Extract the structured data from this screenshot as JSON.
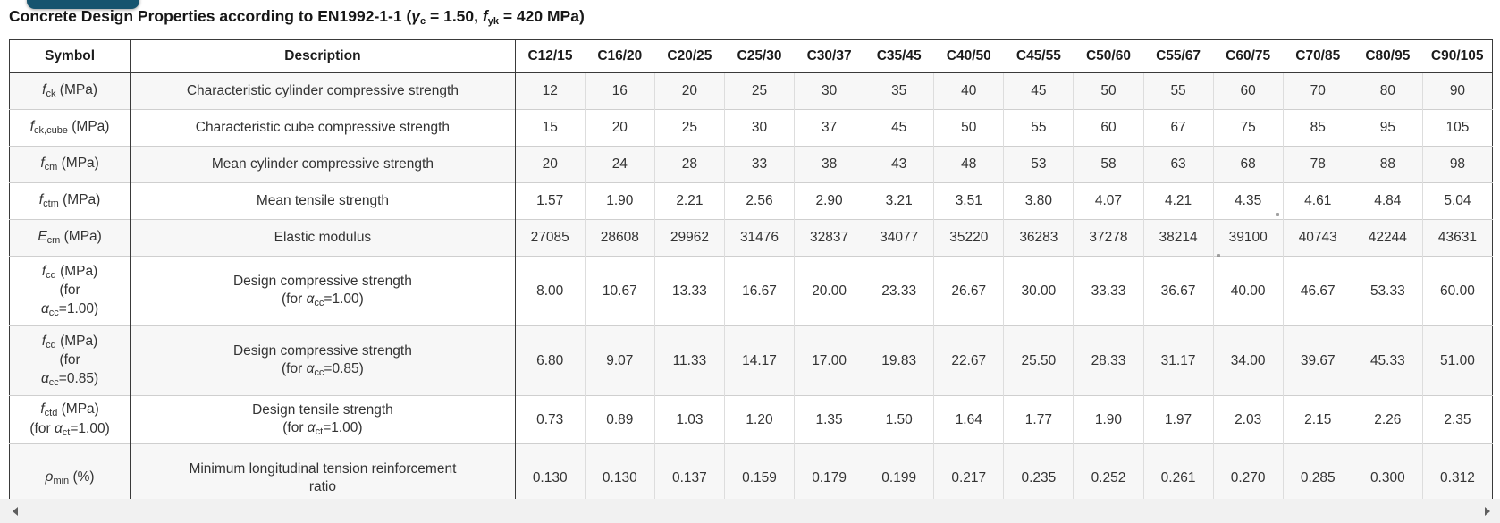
{
  "tab": {
    "color": "#16546f"
  },
  "title": {
    "segments": [
      [
        "Concrete Design Properties according to EN1992-1-1 (",
        ""
      ],
      [
        "γ",
        "i"
      ],
      [
        "c",
        "sub"
      ],
      [
        " = 1.50, ",
        ""
      ],
      [
        "f",
        "i"
      ],
      [
        "yk",
        "sub"
      ],
      [
        " = 420 MPa)",
        ""
      ]
    ]
  },
  "table": {
    "headers": {
      "symbol": "Symbol",
      "description": "Description"
    },
    "columns": [
      "C12/15",
      "C16/20",
      "C20/25",
      "C25/30",
      "C30/37",
      "C35/45",
      "C40/50",
      "C45/55",
      "C50/60",
      "C55/67",
      "C60/75",
      "C70/85",
      "C80/95",
      "C90/105"
    ],
    "rows": [
      {
        "id": "fck",
        "symbol": [
          [
            [
              "f",
              "i"
            ],
            [
              "ck",
              "sub"
            ],
            [
              " (MPa)",
              ""
            ]
          ]
        ],
        "description": [
          [
            [
              "Characteristic cylinder compressive strength",
              ""
            ]
          ]
        ],
        "values": [
          "12",
          "16",
          "20",
          "25",
          "30",
          "35",
          "40",
          "45",
          "50",
          "55",
          "60",
          "70",
          "80",
          "90"
        ]
      },
      {
        "id": "fckcube",
        "symbol": [
          [
            [
              "f",
              "i"
            ],
            [
              "ck,cube",
              "sub"
            ],
            [
              " (MPa)",
              ""
            ]
          ]
        ],
        "description": [
          [
            [
              "Characteristic cube compressive strength",
              ""
            ]
          ]
        ],
        "values": [
          "15",
          "20",
          "25",
          "30",
          "37",
          "45",
          "50",
          "55",
          "60",
          "67",
          "75",
          "85",
          "95",
          "105"
        ]
      },
      {
        "id": "fcm",
        "symbol": [
          [
            [
              "f",
              "i"
            ],
            [
              "cm",
              "sub"
            ],
            [
              " (MPa)",
              ""
            ]
          ]
        ],
        "description": [
          [
            [
              "Mean cylinder compressive strength",
              ""
            ]
          ]
        ],
        "values": [
          "20",
          "24",
          "28",
          "33",
          "38",
          "43",
          "48",
          "53",
          "58",
          "63",
          "68",
          "78",
          "88",
          "98"
        ]
      },
      {
        "id": "fctm",
        "symbol": [
          [
            [
              "f",
              "i"
            ],
            [
              "ctm",
              "sub"
            ],
            [
              " (MPa)",
              ""
            ]
          ]
        ],
        "description": [
          [
            [
              "Mean tensile strength",
              ""
            ]
          ]
        ],
        "values": [
          "1.57",
          "1.90",
          "2.21",
          "2.56",
          "2.90",
          "3.21",
          "3.51",
          "3.80",
          "4.07",
          "4.21",
          "4.35",
          "4.61",
          "4.84",
          "5.04"
        ]
      },
      {
        "id": "ecm",
        "symbol": [
          [
            [
              "E",
              "i"
            ],
            [
              "cm",
              "sub"
            ],
            [
              " (MPa)",
              ""
            ]
          ]
        ],
        "description": [
          [
            [
              "Elastic modulus",
              ""
            ]
          ]
        ],
        "values": [
          "27085",
          "28608",
          "29962",
          "31476",
          "32837",
          "34077",
          "35220",
          "36283",
          "37278",
          "38214",
          "39100",
          "40743",
          "42244",
          "43631"
        ]
      },
      {
        "id": "fcd100",
        "symbol": [
          [
            [
              "f",
              "i"
            ],
            [
              "cd",
              "sub"
            ],
            [
              " (MPa)",
              ""
            ]
          ],
          [
            [
              "(for",
              ""
            ]
          ],
          [
            [
              "α",
              "i"
            ],
            [
              "cc",
              "sub"
            ],
            [
              "=1.00)",
              ""
            ]
          ]
        ],
        "description": [
          [
            [
              "Design compressive strength",
              ""
            ]
          ],
          [
            [
              "(for ",
              ""
            ],
            [
              "α",
              "i"
            ],
            [
              "cc",
              "sub"
            ],
            [
              "=1.00)",
              ""
            ]
          ]
        ],
        "values": [
          "8.00",
          "10.67",
          "13.33",
          "16.67",
          "20.00",
          "23.33",
          "26.67",
          "30.00",
          "33.33",
          "36.67",
          "40.00",
          "46.67",
          "53.33",
          "60.00"
        ]
      },
      {
        "id": "fcd085",
        "symbol": [
          [
            [
              "f",
              "i"
            ],
            [
              "cd",
              "sub"
            ],
            [
              " (MPa)",
              ""
            ]
          ],
          [
            [
              "(for",
              ""
            ]
          ],
          [
            [
              "α",
              "i"
            ],
            [
              "cc",
              "sub"
            ],
            [
              "=0.85)",
              ""
            ]
          ]
        ],
        "description": [
          [
            [
              "Design compressive strength",
              ""
            ]
          ],
          [
            [
              "(for ",
              ""
            ],
            [
              "α",
              "i"
            ],
            [
              "cc",
              "sub"
            ],
            [
              "=0.85)",
              ""
            ]
          ]
        ],
        "values": [
          "6.80",
          "9.07",
          "11.33",
          "14.17",
          "17.00",
          "19.83",
          "22.67",
          "25.50",
          "28.33",
          "31.17",
          "34.00",
          "39.67",
          "45.33",
          "51.00"
        ]
      },
      {
        "id": "fctd",
        "symbol": [
          [
            [
              "f",
              "i"
            ],
            [
              "ctd",
              "sub"
            ],
            [
              " (MPa)",
              ""
            ]
          ],
          [
            [
              "(for ",
              ""
            ],
            [
              "α",
              "i"
            ],
            [
              "ct",
              "sub"
            ],
            [
              "=1.00)",
              ""
            ]
          ]
        ],
        "description": [
          [
            [
              "Design tensile strength",
              ""
            ]
          ],
          [
            [
              "(for ",
              ""
            ],
            [
              "α",
              "i"
            ],
            [
              "ct",
              "sub"
            ],
            [
              "=1.00)",
              ""
            ]
          ]
        ],
        "values": [
          "0.73",
          "0.89",
          "1.03",
          "1.20",
          "1.35",
          "1.50",
          "1.64",
          "1.77",
          "1.90",
          "1.97",
          "2.03",
          "2.15",
          "2.26",
          "2.35"
        ]
      },
      {
        "id": "rhomin",
        "symbol": [
          [
            [
              "ρ",
              "i"
            ],
            [
              "min",
              "sub"
            ],
            [
              " (%)",
              ""
            ]
          ]
        ],
        "description": [
          [
            [
              "Minimum longitudinal tension reinforcement",
              ""
            ]
          ],
          [
            [
              "ratio",
              ""
            ]
          ]
        ],
        "values": [
          "0.130",
          "0.130",
          "0.137",
          "0.159",
          "0.179",
          "0.199",
          "0.217",
          "0.235",
          "0.252",
          "0.261",
          "0.270",
          "0.285",
          "0.300",
          "0.312"
        ]
      }
    ]
  },
  "scrollbar": {
    "left_icon": "left-triangle",
    "right_icon": "right-triangle"
  }
}
